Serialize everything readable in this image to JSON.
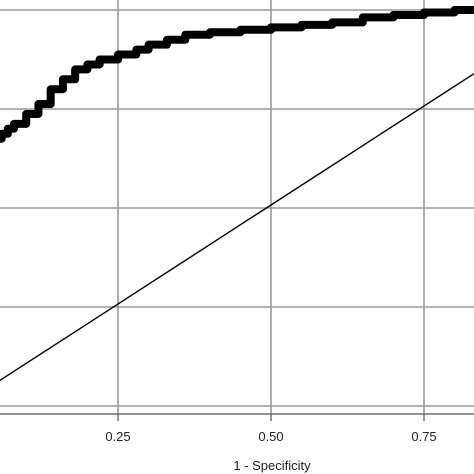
{
  "chart_data": {
    "type": "line",
    "title": "",
    "xlabel": "1 - Specificity",
    "ylabel": "",
    "xlim": [
      0.0,
      0.84
    ],
    "ylim": [
      0.08,
      1.02
    ],
    "x_ticks": [
      0.25,
      0.5,
      0.75
    ],
    "x_tick_labels": [
      "0.25",
      "0.50",
      "0.75"
    ],
    "x_grid": [
      0.0,
      0.25,
      0.5,
      0.75
    ],
    "y_grid": [
      0.2,
      0.4,
      0.6,
      0.8,
      1.0
    ],
    "grid": true,
    "series": [
      {
        "name": "",
        "style": "thick-step",
        "color": "#000000",
        "x": [
          0.0,
          0.01,
          0.02,
          0.03,
          0.04,
          0.05,
          0.06,
          0.07,
          0.08,
          0.1,
          0.12,
          0.14,
          0.16,
          0.18,
          0.2,
          0.22,
          0.25,
          0.28,
          0.3,
          0.33,
          0.36,
          0.4,
          0.45,
          0.5,
          0.55,
          0.6,
          0.65,
          0.7,
          0.75,
          0.8,
          0.84
        ],
        "y": [
          0.55,
          0.6,
          0.64,
          0.68,
          0.72,
          0.74,
          0.75,
          0.76,
          0.77,
          0.79,
          0.81,
          0.84,
          0.86,
          0.88,
          0.89,
          0.9,
          0.91,
          0.92,
          0.93,
          0.94,
          0.95,
          0.955,
          0.96,
          0.965,
          0.97,
          0.975,
          0.985,
          0.99,
          0.995,
          1.0,
          1.0
        ]
      },
      {
        "name": "",
        "style": "reference",
        "color": "#000000",
        "x": [
          0.0,
          0.84
        ],
        "y": [
          0.0,
          0.84
        ]
      }
    ]
  }
}
